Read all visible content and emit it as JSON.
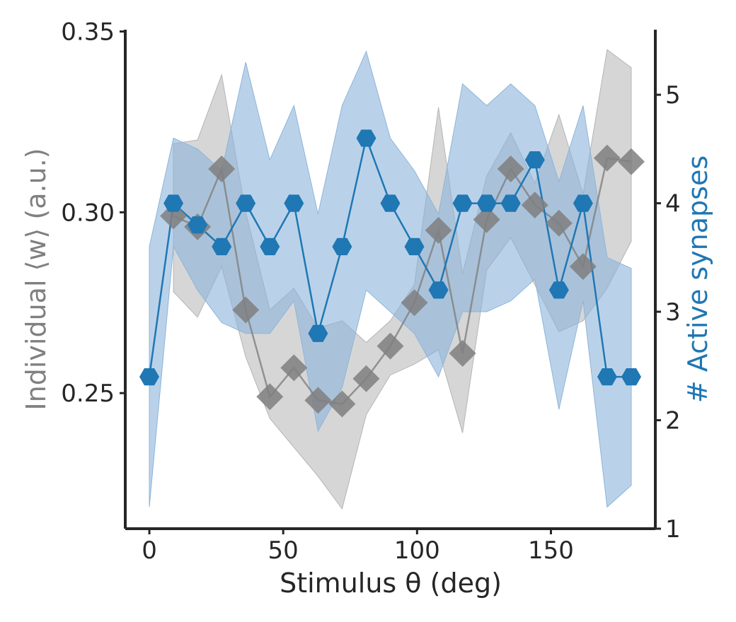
{
  "chart_data": {
    "type": "line",
    "xlabel": "Stimulus θ (deg)",
    "ylabel_left": "Individual ⟨w⟩ (a.u.)",
    "ylabel_right": "# Active synapses",
    "xlim": [
      -9,
      189
    ],
    "ylim_left": [
      0.2125,
      0.3505
    ],
    "ylim_right": [
      1.0,
      5.6
    ],
    "x_ticks": [
      0,
      50,
      100,
      150
    ],
    "y_left_ticks": [
      0.25,
      0.3,
      0.35
    ],
    "y_left_tick_labels": [
      "0.25",
      "0.30",
      "0.35"
    ],
    "y_right_ticks": [
      1,
      2,
      3,
      4,
      5
    ],
    "grid": false,
    "colors": {
      "weight": "#7f7f7f",
      "synapses": "#1f77b4",
      "weight_band": "#b4b4b4",
      "synapses_band": "#8cb4da"
    },
    "series": [
      {
        "axis": "left",
        "marker": "diamond",
        "x": [
          9,
          18,
          27,
          36,
          45,
          54,
          63,
          72,
          81,
          90,
          99,
          108,
          117,
          126,
          135,
          144,
          153,
          162,
          171,
          180
        ],
        "values": [
          0.299,
          0.296,
          0.312,
          0.273,
          0.249,
          0.257,
          0.248,
          0.247,
          0.254,
          0.263,
          0.275,
          0.295,
          0.261,
          0.298,
          0.312,
          0.302,
          0.297,
          0.285,
          0.315,
          0.314
        ],
        "upper": [
          0.319,
          0.32,
          0.338,
          0.3,
          0.273,
          0.279,
          0.268,
          0.27,
          0.264,
          0.27,
          0.28,
          0.329,
          0.283,
          0.31,
          0.322,
          0.308,
          0.327,
          0.305,
          0.345,
          0.34
        ],
        "lower": [
          0.278,
          0.271,
          0.285,
          0.26,
          0.243,
          0.235,
          0.227,
          0.218,
          0.244,
          0.255,
          0.258,
          0.262,
          0.239,
          0.284,
          0.293,
          0.28,
          0.267,
          0.27,
          0.279,
          0.292
        ]
      },
      {
        "axis": "right",
        "marker": "hexagon",
        "x": [
          0,
          9,
          18,
          27,
          36,
          45,
          54,
          63,
          72,
          81,
          90,
          99,
          108,
          117,
          126,
          135,
          144,
          153,
          162,
          171,
          180
        ],
        "values": [
          2.4,
          4.0,
          3.8,
          3.6,
          4.0,
          3.6,
          4.0,
          2.8,
          3.6,
          4.6,
          4.0,
          3.6,
          3.2,
          4.0,
          4.0,
          4.0,
          4.4,
          3.2,
          4.0,
          2.4,
          2.4
        ],
        "upper": [
          3.6,
          4.6,
          4.5,
          4.3,
          5.3,
          4.4,
          4.9,
          3.9,
          4.9,
          5.4,
          4.6,
          4.3,
          3.9,
          5.1,
          4.9,
          5.1,
          4.9,
          4.2,
          4.9,
          3.5,
          3.4
        ],
        "lower": [
          1.2,
          3.6,
          3.2,
          2.9,
          2.8,
          2.8,
          3.1,
          1.9,
          2.3,
          3.2,
          3.0,
          2.8,
          2.4,
          3.0,
          3.0,
          3.1,
          3.3,
          2.1,
          3.1,
          1.2,
          1.4
        ]
      }
    ]
  }
}
